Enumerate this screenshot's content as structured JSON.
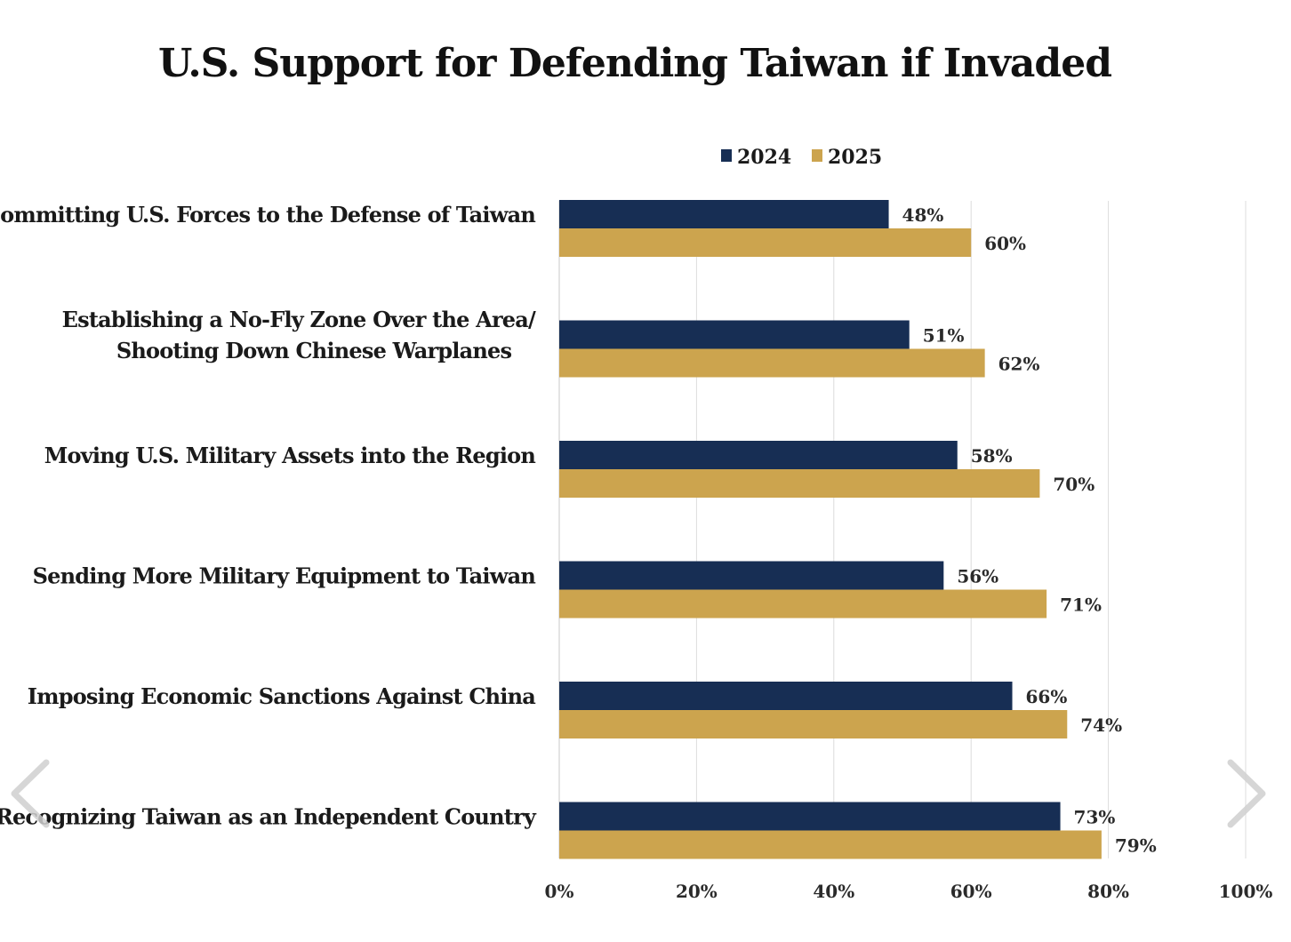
{
  "colors": {
    "series_2024": "#172e54",
    "series_2025": "#cca44e",
    "grid": "#dcdcdc",
    "nav_arrow": "#d0d0d0"
  },
  "icons": {
    "prev": "chevron-left-icon",
    "next": "chevron-right-icon"
  },
  "chart_data": {
    "type": "bar",
    "orientation": "horizontal",
    "title": "U.S. Support for Defending Taiwan if Invaded",
    "categories": [
      [
        "Committing U.S. Forces to the Defense of Taiwan"
      ],
      [
        "Establishing a No-Fly Zone Over the Area/",
        "Shooting Down Chinese Warplanes"
      ],
      [
        "Moving U.S. Military Assets into the Region"
      ],
      [
        "Sending More Military Equipment to Taiwan"
      ],
      [
        "Imposing Economic Sanctions Against China"
      ],
      [
        "Recognizing Taiwan as an Independent Country"
      ]
    ],
    "series": [
      {
        "name": "2024",
        "values": [
          48,
          51,
          58,
          56,
          66,
          73
        ],
        "labels": [
          "48%",
          "51%",
          "58%",
          "56%",
          "66%",
          "73%"
        ]
      },
      {
        "name": "2025",
        "values": [
          60,
          62,
          70,
          71,
          74,
          79
        ],
        "labels": [
          "60%",
          "62%",
          "70%",
          "71%",
          "74%",
          "79%"
        ]
      }
    ],
    "xlim": [
      0,
      100
    ],
    "xticks": [
      0,
      20,
      40,
      60,
      80,
      100
    ],
    "xtick_labels": [
      "0%",
      "20%",
      "40%",
      "60%",
      "80%",
      "100%"
    ],
    "grid": true,
    "legend_position": "top"
  }
}
